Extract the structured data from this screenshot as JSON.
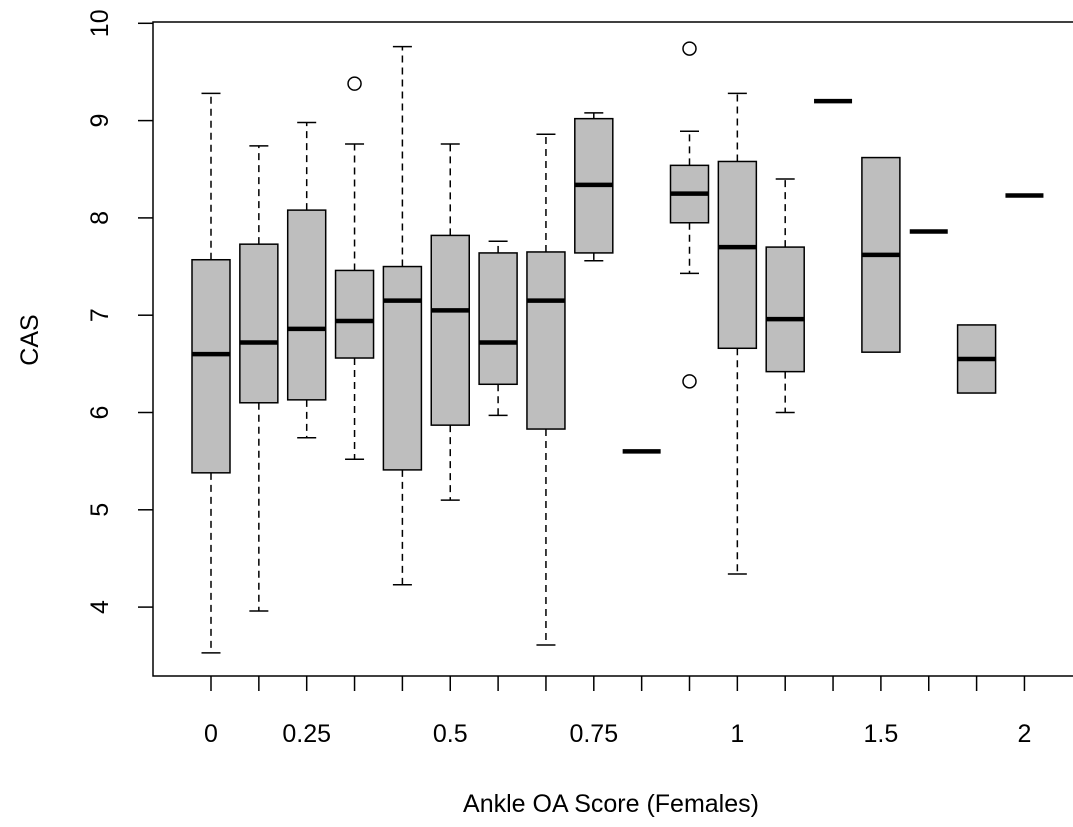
{
  "chart_data": {
    "type": "box",
    "xlabel": "Ankle OA Score (Females)",
    "ylabel": "CAS",
    "ylim": [
      3.35,
      10.0
    ],
    "y_ticks": [
      4,
      5,
      6,
      7,
      8,
      9,
      10
    ],
    "x_tick_labels": [
      "0",
      "",
      "0.25",
      "",
      "",
      "0.5",
      "",
      "",
      "0.75",
      "",
      "",
      "1",
      "",
      "",
      "1.5",
      "",
      "",
      "2"
    ],
    "fill_color": "#bebebe",
    "boxes": [
      {
        "whisker_low": 3.53,
        "q1": 5.38,
        "median": 6.6,
        "q3": 7.57,
        "whisker_high": 9.28,
        "outliers": []
      },
      {
        "whisker_low": 3.96,
        "q1": 6.1,
        "median": 6.72,
        "q3": 7.73,
        "whisker_high": 8.74,
        "outliers": []
      },
      {
        "whisker_low": 5.74,
        "q1": 6.13,
        "median": 6.86,
        "q3": 8.08,
        "whisker_high": 8.98,
        "outliers": []
      },
      {
        "whisker_low": 5.52,
        "q1": 6.56,
        "median": 6.94,
        "q3": 7.46,
        "whisker_high": 8.76,
        "outliers": [
          9.38
        ]
      },
      {
        "whisker_low": 4.23,
        "q1": 5.41,
        "median": 7.15,
        "q3": 7.5,
        "whisker_high": 9.76,
        "outliers": []
      },
      {
        "whisker_low": 5.1,
        "q1": 5.87,
        "median": 7.05,
        "q3": 7.82,
        "whisker_high": 8.76,
        "outliers": []
      },
      {
        "whisker_low": 5.97,
        "q1": 6.29,
        "median": 6.72,
        "q3": 7.64,
        "whisker_high": 7.76,
        "outliers": []
      },
      {
        "whisker_low": 3.61,
        "q1": 5.83,
        "median": 7.15,
        "q3": 7.65,
        "whisker_high": 8.86,
        "outliers": []
      },
      {
        "whisker_low": 7.56,
        "q1": 7.64,
        "median": 8.34,
        "q3": 9.02,
        "whisker_high": 9.08,
        "outliers": []
      },
      {
        "whisker_low": 5.6,
        "q1": 5.6,
        "median": 5.6,
        "q3": 5.6,
        "whisker_high": 5.6,
        "outliers": []
      },
      {
        "whisker_low": 7.43,
        "q1": 7.95,
        "median": 8.25,
        "q3": 8.54,
        "whisker_high": 8.89,
        "outliers": [
          9.74,
          6.32
        ]
      },
      {
        "whisker_low": 4.34,
        "q1": 6.66,
        "median": 7.7,
        "q3": 8.58,
        "whisker_high": 9.28,
        "outliers": []
      },
      {
        "whisker_low": 6.0,
        "q1": 6.42,
        "median": 6.96,
        "q3": 7.7,
        "whisker_high": 8.4,
        "outliers": []
      },
      {
        "whisker_low": 9.2,
        "q1": 9.2,
        "median": 9.2,
        "q3": 9.2,
        "whisker_high": 9.2,
        "outliers": []
      },
      {
        "whisker_low": 6.62,
        "q1": 6.62,
        "median": 7.62,
        "q3": 8.62,
        "whisker_high": 8.62,
        "outliers": []
      },
      {
        "whisker_low": 7.86,
        "q1": 7.86,
        "median": 7.86,
        "q3": 7.86,
        "whisker_high": 7.86,
        "outliers": []
      },
      {
        "whisker_low": 6.2,
        "q1": 6.2,
        "median": 6.55,
        "q3": 6.9,
        "whisker_high": 6.9,
        "outliers": []
      },
      {
        "whisker_low": 8.23,
        "q1": 8.23,
        "median": 8.23,
        "q3": 8.23,
        "whisker_high": 8.23,
        "outliers": []
      }
    ]
  }
}
